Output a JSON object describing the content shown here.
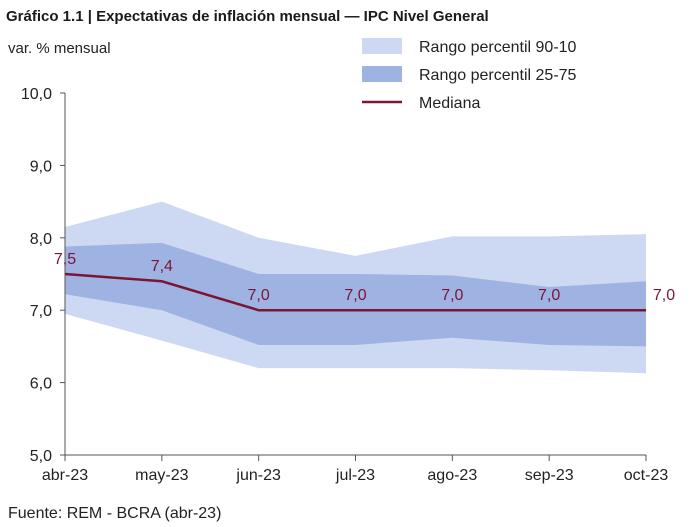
{
  "colors": {
    "band_outer": "#cdd8f2",
    "band_inner": "#9fb3e2",
    "median": "#7b1535",
    "axis": "#555555"
  },
  "chart_data": {
    "type": "area",
    "title": "Gráfico 1.1 | Expectativas de inflación mensual — IPC Nivel General",
    "ylabel": "var. % mensual",
    "xlabel": "",
    "source": "Fuente: REM - BCRA (abr-23)",
    "categories": [
      "abr-23",
      "may-23",
      "jun-23",
      "jul-23",
      "ago-23",
      "sep-23",
      "oct-23"
    ],
    "ylim": [
      5.0,
      10.0
    ],
    "yticks": [
      "5,0",
      "6,0",
      "7,0",
      "8,0",
      "9,0",
      "10,0"
    ],
    "grid": false,
    "legend_position": "top-right",
    "series": [
      {
        "name": "Rango percentil 90-10",
        "kind": "band",
        "low": [
          6.95,
          6.58,
          6.2,
          6.2,
          6.2,
          6.17,
          6.13
        ],
        "high": [
          8.15,
          8.5,
          8.0,
          7.75,
          8.02,
          8.02,
          8.05
        ]
      },
      {
        "name": "Rango percentil 25-75",
        "kind": "band",
        "low": [
          7.22,
          7.0,
          6.52,
          6.52,
          6.62,
          6.52,
          6.5
        ],
        "high": [
          7.88,
          7.93,
          7.5,
          7.5,
          7.48,
          7.32,
          7.4
        ]
      },
      {
        "name": "Mediana",
        "kind": "line",
        "values": [
          7.5,
          7.4,
          7.0,
          7.0,
          7.0,
          7.0,
          7.0
        ],
        "labels": [
          "7,5",
          "7,4",
          "7,0",
          "7,0",
          "7,0",
          "7,0",
          "7,0"
        ]
      }
    ]
  }
}
